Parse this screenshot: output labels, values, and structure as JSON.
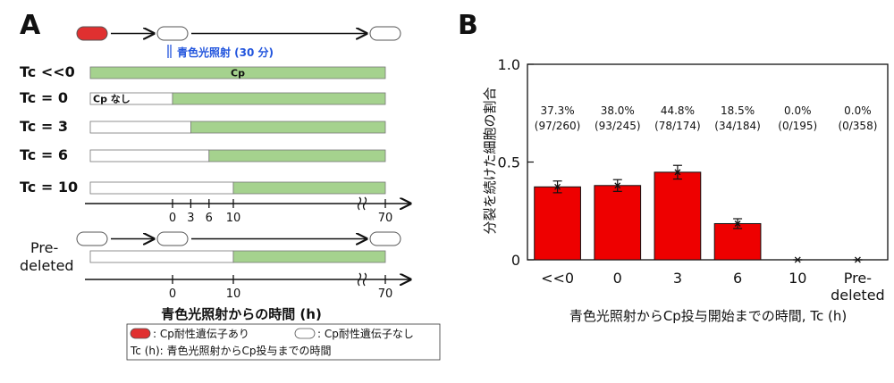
{
  "panel_a": {
    "letter": "A",
    "light_label": "青色光照射 (30 分)",
    "rows": [
      {
        "label": "Tc <<0",
        "start": null,
        "bar_text": "Cp"
      },
      {
        "label": "Tc = 0",
        "start": 0,
        "bar_text": "Cp なし"
      },
      {
        "label": "Tc = 3",
        "start": 3,
        "bar_text": ""
      },
      {
        "label": "Tc = 6",
        "start": 6,
        "bar_text": ""
      },
      {
        "label": "Tc = 10",
        "start": 10,
        "bar_text": ""
      }
    ],
    "axis1_ticks": [
      "0",
      "3",
      "6",
      "10",
      "70"
    ],
    "predeleted_label": "Pre-deleted",
    "axis2_ticks": [
      "0",
      "10",
      "70"
    ],
    "axis_title": "青色光照射からの時間 (h)",
    "legend": {
      "red_label": ": Cp耐性遺伝子あり",
      "white_label": ": Cp耐性遺伝子なし",
      "tc_note": "Tc (h): 青色光照射からCp投与までの時間"
    },
    "colors": {
      "cp_green": "#a5d28e",
      "resistant_red": "#e03030"
    }
  },
  "chart_data": {
    "type": "bar",
    "panel_letter": "B",
    "categories": [
      "<<0",
      "0",
      "3",
      "6",
      "10",
      "Pre-deleted"
    ],
    "values": [
      0.373,
      0.38,
      0.448,
      0.185,
      0.0,
      0.0
    ],
    "errors": [
      0.03,
      0.03,
      0.035,
      0.025,
      0.0,
      0.0
    ],
    "percent_labels": [
      "37.3%",
      "38.0%",
      "44.8%",
      "18.5%",
      "0.0%",
      "0.0%"
    ],
    "count_labels": [
      "(97/260)",
      "(93/245)",
      "(78/174)",
      "(34/184)",
      "(0/195)",
      "(0/358)"
    ],
    "ylabel": "分裂を続けた細胞の割合",
    "xlabel": "青色光照射からCp投与開始までの時間, Tc (h)",
    "ylim": [
      0,
      1.0
    ],
    "yticks": [
      "0",
      "0.5",
      "1.0"
    ],
    "bar_color": "#ee0000",
    "grid": false
  }
}
